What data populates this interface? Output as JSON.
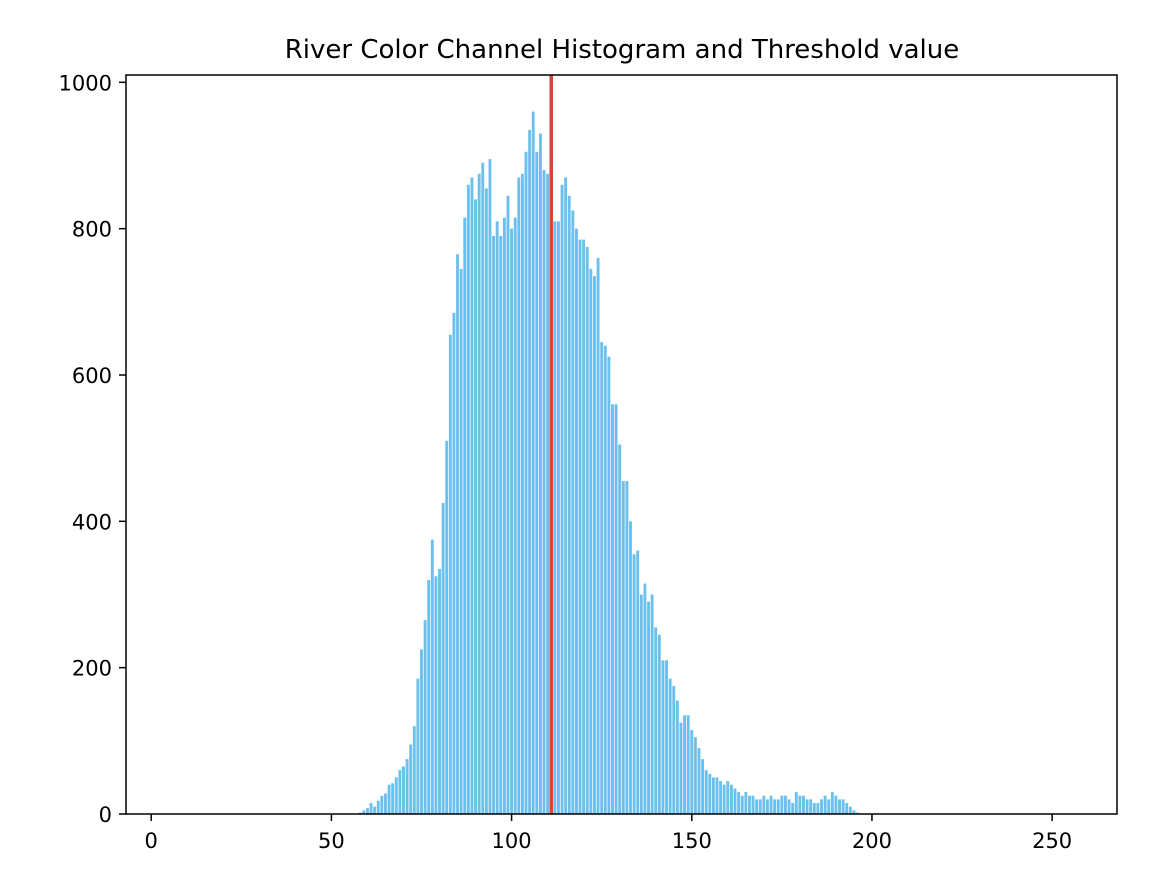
{
  "chart_data": {
    "type": "bar",
    "title": "River Color Channel Histogram and Threshold value",
    "xlabel": "",
    "ylabel": "",
    "xlim": [
      -7,
      268
    ],
    "ylim": [
      0,
      1010
    ],
    "x_ticks": [
      0,
      50,
      100,
      150,
      200,
      250
    ],
    "y_ticks": [
      0,
      200,
      400,
      600,
      800,
      1000
    ],
    "bar_color": "#6bc0ee",
    "threshold_color": "#d9433a",
    "threshold": 111,
    "grid": false,
    "bins": [
      58,
      59,
      60,
      61,
      62,
      63,
      64,
      65,
      66,
      67,
      68,
      69,
      70,
      71,
      72,
      73,
      74,
      75,
      76,
      77,
      78,
      79,
      80,
      81,
      82,
      83,
      84,
      85,
      86,
      87,
      88,
      89,
      90,
      91,
      92,
      93,
      94,
      95,
      96,
      97,
      98,
      99,
      100,
      101,
      102,
      103,
      104,
      105,
      106,
      107,
      108,
      109,
      110,
      111,
      112,
      113,
      114,
      115,
      116,
      117,
      118,
      119,
      120,
      121,
      122,
      123,
      124,
      125,
      126,
      127,
      128,
      129,
      130,
      131,
      132,
      133,
      134,
      135,
      136,
      137,
      138,
      139,
      140,
      141,
      142,
      143,
      144,
      145,
      146,
      147,
      148,
      149,
      150,
      151,
      152,
      153,
      154,
      155,
      156,
      157,
      158,
      159,
      160,
      161,
      162,
      163,
      164,
      165,
      166,
      167,
      168,
      169,
      170,
      171,
      172,
      173,
      174,
      175,
      176,
      177,
      178,
      179,
      180,
      181,
      182,
      183,
      184,
      185,
      186,
      187,
      188,
      189,
      190,
      191,
      192,
      193,
      194,
      195,
      196
    ],
    "counts": [
      2,
      5,
      8,
      15,
      10,
      18,
      25,
      28,
      40,
      42,
      50,
      60,
      65,
      75,
      95,
      120,
      185,
      225,
      265,
      320,
      375,
      325,
      335,
      425,
      510,
      655,
      685,
      765,
      745,
      815,
      860,
      870,
      840,
      875,
      890,
      855,
      895,
      790,
      810,
      790,
      815,
      845,
      800,
      815,
      870,
      875,
      905,
      935,
      960,
      905,
      930,
      880,
      875,
      900,
      810,
      810,
      860,
      870,
      845,
      825,
      800,
      785,
      785,
      775,
      745,
      735,
      760,
      645,
      640,
      625,
      560,
      560,
      505,
      455,
      455,
      400,
      355,
      360,
      300,
      315,
      290,
      300,
      255,
      245,
      210,
      210,
      185,
      175,
      155,
      125,
      135,
      135,
      115,
      105,
      90,
      75,
      60,
      55,
      50,
      50,
      45,
      40,
      45,
      40,
      35,
      30,
      25,
      30,
      25,
      25,
      20,
      20,
      25,
      20,
      25,
      20,
      20,
      25,
      25,
      20,
      15,
      30,
      25,
      25,
      20,
      20,
      15,
      15,
      20,
      25,
      20,
      30,
      25,
      20,
      20,
      15,
      10,
      5,
      2
    ]
  }
}
